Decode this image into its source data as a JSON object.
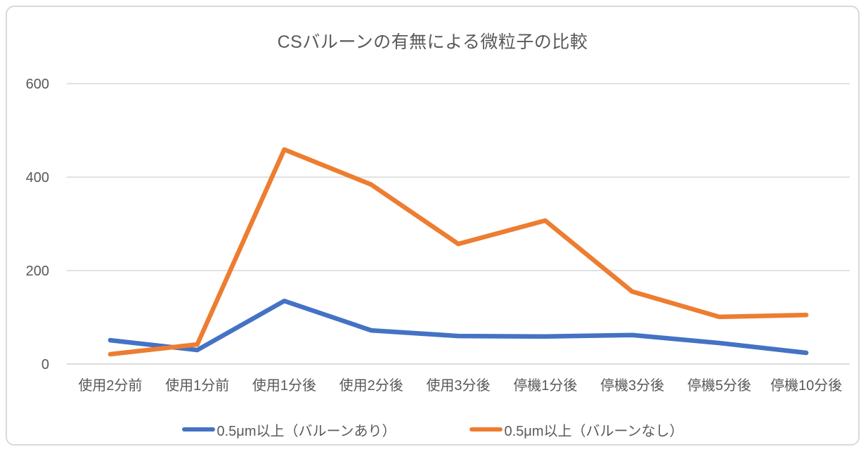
{
  "chart_data": {
    "type": "line",
    "title": "CSバルーンの有無による微粒子の比較",
    "categories": [
      "使用2分前",
      "使用1分前",
      "使用1分後",
      "使用2分後",
      "使用3分後",
      "停機1分後",
      "停機3分後",
      "停機5分後",
      "停機10分後"
    ],
    "series": [
      {
        "name": "0.5μm以上（バルーンあり）",
        "color": "#4472C4",
        "values": [
          51,
          30,
          135,
          72,
          60,
          59,
          62,
          45,
          24
        ]
      },
      {
        "name": "0.5μm以上（バルーンなし）",
        "color": "#ED7D31",
        "values": [
          21,
          42,
          459,
          384,
          257,
          307,
          155,
          101,
          105
        ]
      }
    ],
    "xlabel": "",
    "ylabel": "",
    "ylim": [
      0,
      600
    ],
    "yticks": [
      0,
      200,
      400,
      600
    ],
    "grid": true,
    "legend_position": "bottom"
  },
  "style": {
    "background": "#FFFFFF",
    "border_color": "#D9D9D9",
    "grid_color": "#D9D9D9",
    "axis_color": "#D0D0D0",
    "text_color": "#595959",
    "title_color": "#595959"
  }
}
